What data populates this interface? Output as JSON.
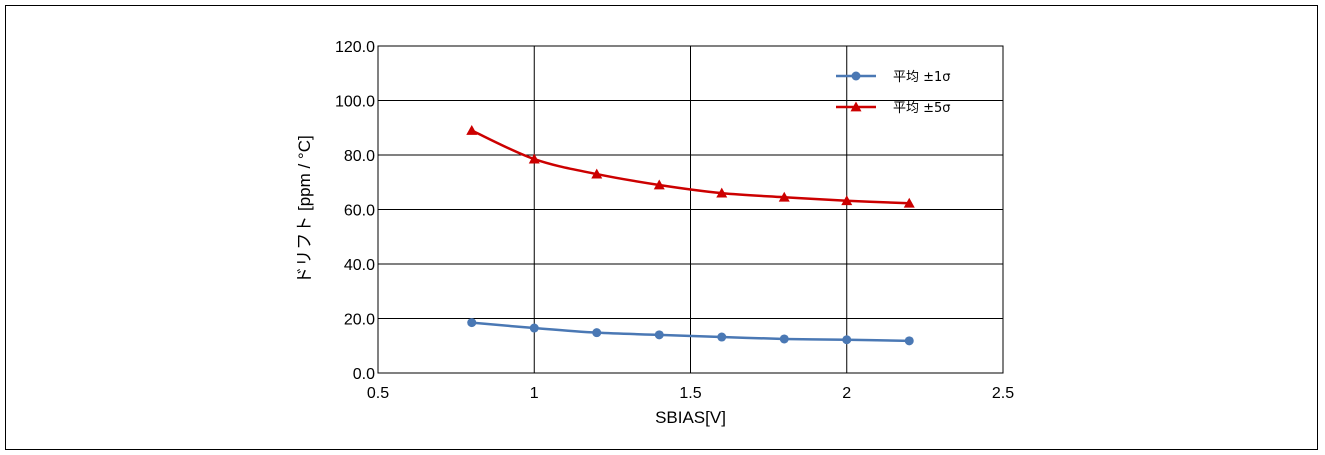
{
  "chart_data": {
    "type": "line",
    "title": "",
    "xlabel": "SBIAS[V]",
    "ylabel": "ドリフト [ppm / °C]",
    "xlim": [
      0.5,
      2.5
    ],
    "ylim": [
      0,
      120
    ],
    "xticks": [
      0.5,
      1,
      1.5,
      2,
      2.5
    ],
    "xtick_labels": [
      "0.5",
      "1",
      "1.5",
      "2",
      "2.5"
    ],
    "yticks": [
      0,
      20,
      40,
      60,
      80,
      100,
      120
    ],
    "ytick_labels": [
      "0.0",
      "20.0",
      "40.0",
      "60.0",
      "80.0",
      "100.0",
      "120.0"
    ],
    "grid": true,
    "legend_position": "top-right",
    "x": [
      0.8,
      1.0,
      1.2,
      1.4,
      1.6,
      1.8,
      2.0,
      2.2
    ],
    "series": [
      {
        "name": "平均 ±1σ",
        "color": "#4a78b4",
        "marker": "circle",
        "values": [
          18.5,
          16.5,
          14.8,
          14.0,
          13.2,
          12.5,
          12.2,
          11.8
        ]
      },
      {
        "name": "平均 ±5σ",
        "color": "#cc0000",
        "marker": "triangle",
        "values": [
          89.0,
          78.5,
          73.0,
          69.0,
          66.0,
          64.5,
          63.2,
          62.3
        ]
      }
    ]
  }
}
